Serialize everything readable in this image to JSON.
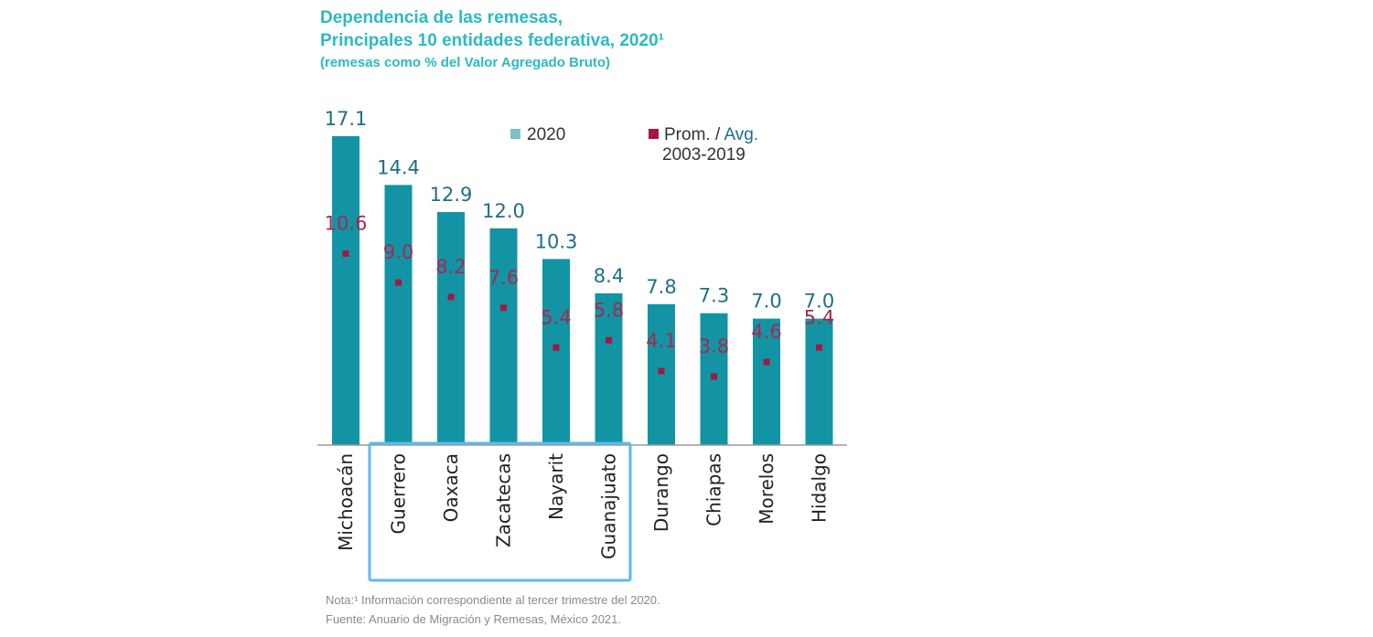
{
  "title": {
    "line1": "Dependencia de las remesas,",
    "line2": "Principales 10 entidades federativa, 2020¹",
    "subtitle": "(remesas como % del Valor Agregado Bruto)"
  },
  "legend": {
    "series1": "2020",
    "series2_part1": "Prom. / ",
    "series2_part2": "Avg.",
    "series2_line2": "2003-2019"
  },
  "colors": {
    "bar": "#1294a5",
    "marker": "#a51646",
    "bar_label": "#1e6f86",
    "avg_label": "#a8284f",
    "highlight_box": "#5fb9ea",
    "legend_square": "#7fbfc8"
  },
  "chart_data": {
    "type": "bar",
    "categories": [
      "Michoacán",
      "Guerrero",
      "Oaxaca",
      "Zacatecas",
      "Nayarit",
      "Guanajuato",
      "Durango",
      "Chiapas",
      "Morelos",
      "Hidalgo"
    ],
    "series": [
      {
        "name": "2020",
        "type": "bar",
        "values": [
          17.1,
          14.4,
          12.9,
          12.0,
          10.3,
          8.4,
          7.8,
          7.3,
          7.0,
          7.0
        ],
        "labels": [
          "17.1",
          "14.4",
          "12.9",
          "12.0",
          "10.3",
          "8.4",
          "7.8",
          "7.3",
          "7.0",
          "7.0"
        ]
      },
      {
        "name": "Prom. / Avg. 2003-2019",
        "type": "scatter",
        "values": [
          10.6,
          9.0,
          8.2,
          7.6,
          5.4,
          5.8,
          4.1,
          3.8,
          4.6,
          5.4
        ],
        "labels": [
          "10.6",
          "9.0",
          "8.2",
          "7.6",
          "5.4",
          "5.8",
          "4.1",
          "3.8",
          "4.6",
          "5.4"
        ]
      }
    ],
    "ylim": [
      0,
      17.1
    ],
    "grid": false,
    "legend_position": "top-right",
    "highlighted_categories": [
      "Guerrero",
      "Oaxaca",
      "Zacatecas",
      "Nayarit",
      "Guanajuato"
    ]
  },
  "notes": {
    "note1": "Nota:¹ Información correspondiente al tercer trimestre del 2020.",
    "note2": "Fuente: Anuario de Migración y Remesas, México 2021."
  }
}
